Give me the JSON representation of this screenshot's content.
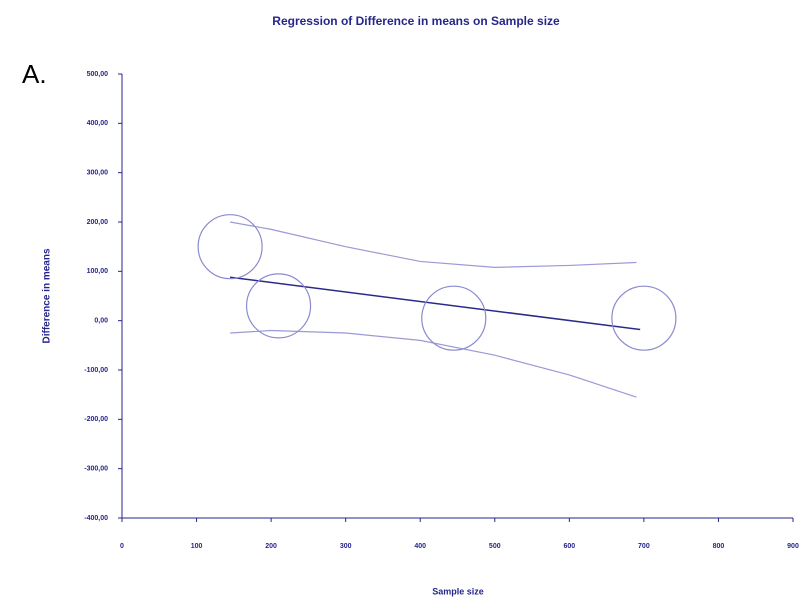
{
  "chart_data": {
    "type": "scatter",
    "title": "Regression of Difference in means on Sample size",
    "panel_label": "A.",
    "x_label": "Sample size",
    "y_label": "Difference in means",
    "xlim": [
      0,
      900
    ],
    "xticks": [
      0,
      100,
      200,
      300,
      400,
      500,
      600,
      700,
      800,
      900
    ],
    "ylim": [
      -400,
      500
    ],
    "yticks": [
      {
        "value": -400,
        "label": "-400,00"
      },
      {
        "value": -300,
        "label": "-300,00"
      },
      {
        "value": -200,
        "label": "-200,00"
      },
      {
        "value": -100,
        "label": "-100,00"
      },
      {
        "value": 0,
        "label": "0,00"
      },
      {
        "value": 100,
        "label": "100,00"
      },
      {
        "value": 200,
        "label": "200,00"
      },
      {
        "value": 300,
        "label": "300,00"
      },
      {
        "value": 400,
        "label": "400,00"
      },
      {
        "value": 500,
        "label": "500,00"
      }
    ],
    "points": {
      "color": "#8a8ad0",
      "x": [
        145,
        210,
        445,
        700
      ],
      "y": [
        150,
        30,
        5,
        5
      ]
    },
    "regression": {
      "color": "#2a2a88",
      "x": [
        145,
        695
      ],
      "y": [
        88,
        -18
      ]
    },
    "ci_upper": {
      "color": "#9a9ad6",
      "x": [
        145,
        200,
        300,
        400,
        500,
        600,
        690
      ],
      "y": [
        200,
        185,
        150,
        120,
        108,
        112,
        118
      ]
    },
    "ci_lower": {
      "color": "#9a9ad6",
      "x": [
        145,
        200,
        300,
        400,
        500,
        600,
        690
      ],
      "y": [
        -25,
        -20,
        -25,
        -40,
        -70,
        -110,
        -155
      ]
    }
  }
}
